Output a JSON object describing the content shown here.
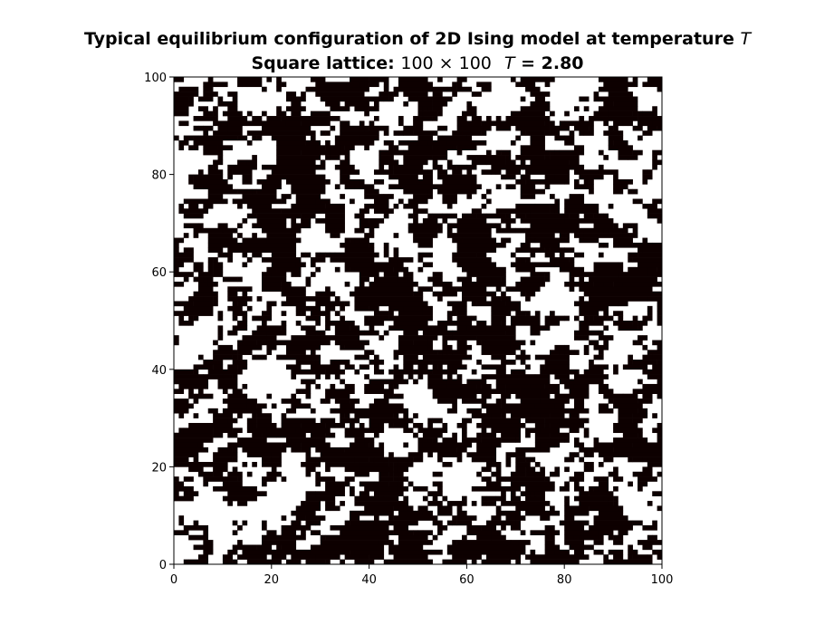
{
  "chart_data": {
    "type": "heatmap",
    "title": "Typical equilibrium configuration of 2D Ising model at temperature T",
    "subtitle": "Square lattice: 100 × 100    T = 2.80",
    "title_parts": [
      "Typical equilibrium configuration of 2D Ising model at temperature ",
      "T"
    ],
    "subtitle_parts": [
      "Square lattice: ",
      "100 × 100",
      "T",
      " = 2.80"
    ],
    "lattice_size": [
      100,
      100
    ],
    "temperature": 2.8,
    "xlim": [
      0,
      100
    ],
    "ylim": [
      0,
      100
    ],
    "x_ticks": [
      "0",
      "20",
      "40",
      "60",
      "80",
      "100"
    ],
    "y_ticks": [
      "0",
      "20",
      "40",
      "60",
      "80",
      "100"
    ],
    "colormap": {
      "spin_up": "#ffffff",
      "spin_down": "#0d0000"
    },
    "spin_field_seed": 20240280,
    "grid": false
  }
}
